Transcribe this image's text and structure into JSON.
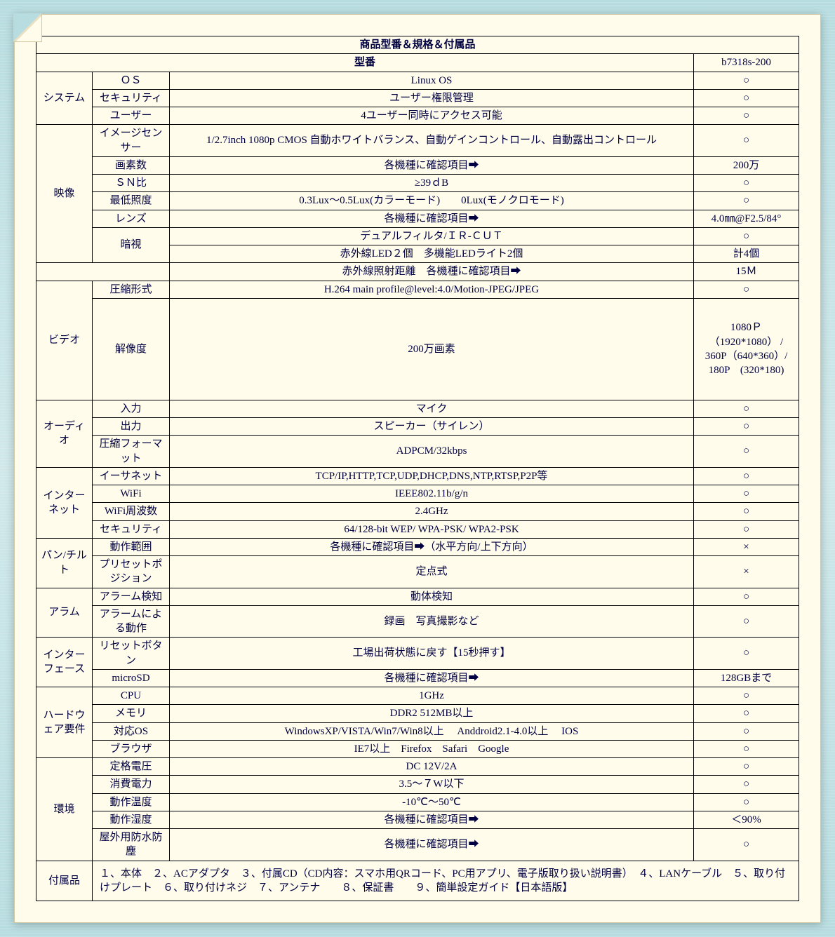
{
  "title": "商品型番＆規格＆付属品",
  "header_model": "型番",
  "model_value": "b7318s-200",
  "groups": [
    {
      "name": "システム",
      "rows": [
        {
          "label": "ＯＳ",
          "spec": "Linux OS",
          "val": "○"
        },
        {
          "label": "セキュリティ",
          "spec": "ユーザー権限管理",
          "val": "○"
        },
        {
          "label": "ユーザー",
          "spec": "4ユーザー同時にアクセス可能",
          "val": "○"
        }
      ]
    },
    {
      "name": "映像",
      "rows": [
        {
          "label": "イメージセンサー",
          "spec": "1/2.7inch 1080p CMOS 自動ホワイトバランス、自動ゲインコントロール、自動露出コントロール",
          "val": "○"
        },
        {
          "label": "画素数",
          "spec": "各機種に確認項目➡",
          "val": "200万"
        },
        {
          "label": "ＳＮ比",
          "spec": "≥39ｄB",
          "val": "○"
        },
        {
          "label": "最低照度",
          "spec": "0.3Lux～0.5Lux(カラーモード)　　0Lux(モノクロモード)",
          "val": "○"
        },
        {
          "label": "レンズ",
          "spec": "各機種に確認項目➡",
          "val": "4.0㎜@F2.5/84°"
        },
        {
          "label": "暗視",
          "spec": "デュアルフィルタ/ＩＲ-ＣＵＴ",
          "val": "○",
          "sub": true
        },
        {
          "label": "",
          "spec": "赤外線LED２個　多機能LEDライト2個",
          "val": "計4個"
        }
      ],
      "extra": {
        "spec": "赤外線照射距離　各機種に確認項目➡",
        "val": "15Ｍ"
      }
    },
    {
      "name": "ビデオ",
      "rows": [
        {
          "label": "圧縮形式",
          "spec": "H.264 main profile@level:4.0/Motion-JPEG/JPEG",
          "val": "○"
        },
        {
          "label": "解像度",
          "spec": "200万画素",
          "val": "1080Ｐ\n（1920*1080） /\n360P（640*360）/\n180P　(320*180)",
          "tall": true
        }
      ]
    },
    {
      "name": "オーディオ",
      "rows": [
        {
          "label": "入力",
          "spec": "マイク",
          "val": "○"
        },
        {
          "label": "出力",
          "spec": "スピーカー（サイレン）",
          "val": "○"
        },
        {
          "label": "圧縮フォーマット",
          "spec": "ADPCM/32kbps",
          "val": "○"
        }
      ]
    },
    {
      "name": "インターネット",
      "rows": [
        {
          "label": "イーサネット",
          "spec": "TCP/IP,HTTP,TCP,UDP,DHCP,DNS,NTP,RTSP,P2P等",
          "val": "○"
        },
        {
          "label": "WiFi",
          "spec": "IEEE802.11b/g/n",
          "val": "○"
        },
        {
          "label": "WiFi周波数",
          "spec": "2.4GHz",
          "val": "○"
        },
        {
          "label": "セキュリティ",
          "spec": "64/128-bit WEP/ WPA-PSK/ WPA2-PSK",
          "val": "○"
        }
      ]
    },
    {
      "name": "パン/チルト",
      "rows": [
        {
          "label": "動作範囲",
          "spec": "各機種に確認項目➡（水平方向/上下方向）",
          "val": "×"
        },
        {
          "label": "プリセットポジション",
          "spec": "定点式",
          "val": "×"
        }
      ]
    },
    {
      "name": "アラム",
      "rows": [
        {
          "label": "アラーム検知",
          "spec": "動体検知",
          "val": "○"
        },
        {
          "label": "アラームによる動作",
          "spec": "録画　写真撮影など",
          "val": "○"
        }
      ]
    },
    {
      "name": "インターフェース",
      "rows": [
        {
          "label": "リセットボタン",
          "spec": "工場出荷状態に戻す【15秒押す】",
          "val": "○"
        },
        {
          "label": "microSD",
          "spec": "各機種に確認項目➡",
          "val": "128GBまで"
        }
      ]
    },
    {
      "name": "ハードウェア要件",
      "rows": [
        {
          "label": "CPU",
          "spec": "1GHz",
          "val": "○"
        },
        {
          "label": "メモリ",
          "spec": "DDR2 512MB以上",
          "val": "○"
        },
        {
          "label": "対応OS",
          "spec": "WindowsXP/VISTA/Win7/Win8以上　 Anddroid2.1-4.0以上　 IOS",
          "val": "○"
        },
        {
          "label": "ブラウザ",
          "spec": "IE7以上　Firefox　Safari　Google",
          "val": "○"
        }
      ]
    },
    {
      "name": "環境",
      "rows": [
        {
          "label": "定格電圧",
          "spec": "DC 12V/2A",
          "val": "○"
        },
        {
          "label": "消費電力",
          "spec": "3.5～７W以下",
          "val": "○"
        },
        {
          "label": "動作温度",
          "spec": "-10℃～50℃",
          "val": "○"
        },
        {
          "label": "動作湿度",
          "spec": "各機種に確認項目➡",
          "val": "＜90%"
        },
        {
          "label": "屋外用防水防塵",
          "spec": "各機種に確認項目➡",
          "val": "○"
        }
      ]
    }
  ],
  "accessories_label": "付属品",
  "accessories_text": "１、本体　２、ACアダプタ　３、付属CD（CD内容：スマホ用QRコード、PC用アプリ、電子版取り扱い説明書）　４、LANケーブル　５、取り付けプレート　６、取り付けネジ　７、アンテナ　　８、保証書　　９、簡単設定ガイド【日本語版】",
  "colors": {
    "bg": "#fffceb",
    "border": "#000000",
    "text": "#000040"
  }
}
